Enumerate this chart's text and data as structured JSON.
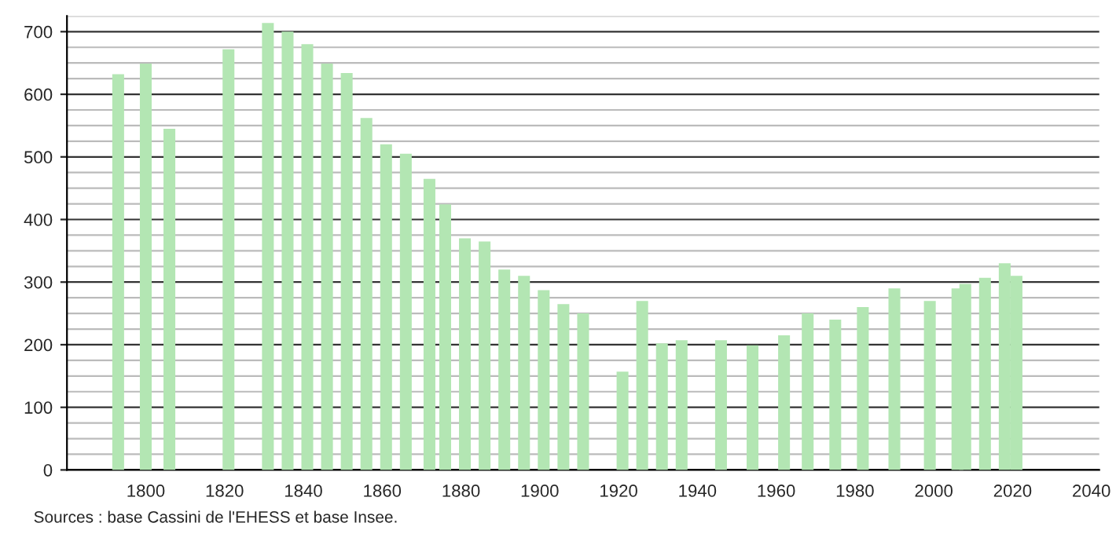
{
  "chart_data": {
    "type": "bar",
    "color": "#b3e6b3",
    "x": [
      1793,
      1800,
      1806,
      1821,
      1831,
      1836,
      1841,
      1846,
      1851,
      1856,
      1861,
      1866,
      1872,
      1876,
      1881,
      1886,
      1891,
      1896,
      1901,
      1906,
      1911,
      1921,
      1926,
      1931,
      1936,
      1946,
      1954,
      1962,
      1968,
      1975,
      1982,
      1990,
      1999,
      2006,
      2008,
      2013,
      2018,
      2021
    ],
    "values": [
      632,
      649,
      545,
      672,
      714,
      700,
      680,
      649,
      634,
      562,
      520,
      505,
      465,
      424,
      370,
      365,
      320,
      310,
      287,
      265,
      250,
      157,
      270,
      202,
      207,
      207,
      199,
      215,
      250,
      240,
      260,
      290,
      270,
      290,
      297,
      307,
      330,
      310
    ],
    "xlim": [
      1780,
      2042
    ],
    "xticks": [
      1800,
      1820,
      1840,
      1860,
      1880,
      1900,
      1920,
      1940,
      1960,
      1980,
      2000,
      2020,
      2040
    ],
    "ylim": [
      0,
      725
    ],
    "yticks": [
      0,
      100,
      200,
      300,
      400,
      500,
      600,
      700
    ],
    "grid": "y",
    "annotations": [
      "Sources : base Cassini de l'EHESS et base Insee."
    ]
  }
}
